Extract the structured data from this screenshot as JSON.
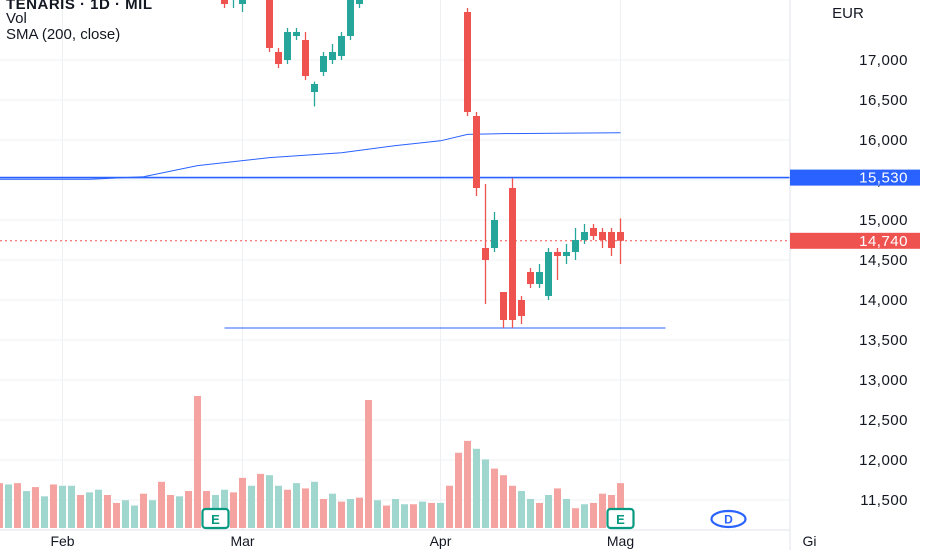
{
  "legend": {
    "symbol": "TENARIS · 1D · MIL",
    "vol_label": "Vol",
    "sma_label": "SMA (200, close)"
  },
  "currency": "EUR",
  "colors": {
    "up": "#26a69a",
    "down": "#ef5350",
    "vol_up": "#9fd6ce",
    "vol_down": "#f5a3a1",
    "line": "#2962ff",
    "sma": "#2962ff",
    "text": "#131722",
    "grid": "#eef0f4"
  },
  "chart_data": {
    "type": "candlestick",
    "y_axis": {
      "ticks": [
        11500,
        12000,
        12500,
        13000,
        13500,
        14000,
        14500,
        15000,
        15500,
        16000,
        16500,
        17000
      ],
      "tick_labels": [
        "11,500",
        "12,000",
        "12,500",
        "13,000",
        "13,500",
        "14,000",
        "14,500",
        "15,000",
        "15,500",
        "16,000",
        "16,500",
        "17,000"
      ],
      "range": [
        11150,
        17700
      ]
    },
    "x_axis": {
      "labels": [
        {
          "text": "Feb",
          "slot": 7
        },
        {
          "text": "Mar",
          "slot": 27
        },
        {
          "text": "Apr",
          "slot": 49
        },
        {
          "text": "Mag",
          "slot": 69
        },
        {
          "text": "Gi",
          "slot": 90
        }
      ],
      "slots_total": 91
    },
    "price_badges": [
      {
        "label": "15,530",
        "value": 15530,
        "color": "#2962ff"
      },
      {
        "label": "14,740",
        "value": 14740,
        "color": "#ef5350"
      }
    ],
    "horizontal_lines": [
      {
        "value": 15530,
        "color": "#2962ff",
        "extends": "full"
      },
      {
        "value": 13650,
        "from_slot": 25,
        "to_slot": 74,
        "color": "#2962ff"
      }
    ],
    "sma_200": [
      {
        "slot": 0,
        "value": 15510
      },
      {
        "slot": 10,
        "value": 15510
      },
      {
        "slot": 16,
        "value": 15540
      },
      {
        "slot": 22,
        "value": 15680
      },
      {
        "slot": 30,
        "value": 15780
      },
      {
        "slot": 38,
        "value": 15840
      },
      {
        "slot": 44,
        "value": 15930
      },
      {
        "slot": 49,
        "value": 15990
      },
      {
        "slot": 52,
        "value": 16070
      },
      {
        "slot": 56,
        "value": 16080
      },
      {
        "slot": 69,
        "value": 16090
      }
    ],
    "candles": [
      {
        "slot": 4,
        "o": 17800,
        "h": 17900,
        "l": 17700,
        "c": 17850
      },
      {
        "slot": 25,
        "o": 17800,
        "h": 17900,
        "l": 17650,
        "c": 17700
      },
      {
        "slot": 26,
        "o": 17750,
        "h": 17850,
        "l": 17650,
        "c": 17800
      },
      {
        "slot": 27,
        "o": 17700,
        "h": 17800,
        "l": 17600,
        "c": 17750
      },
      {
        "slot": 30,
        "o": 17800,
        "h": 17850,
        "l": 17100,
        "c": 17150
      },
      {
        "slot": 31,
        "o": 17100,
        "h": 17150,
        "l": 16900,
        "c": 16950
      },
      {
        "slot": 32,
        "o": 17000,
        "h": 17400,
        "l": 16950,
        "c": 17350
      },
      {
        "slot": 33,
        "o": 17300,
        "h": 17400,
        "l": 17250,
        "c": 17350
      },
      {
        "slot": 34,
        "o": 17250,
        "h": 17350,
        "l": 16750,
        "c": 16800
      },
      {
        "slot": 35,
        "o": 16600,
        "h": 16730,
        "l": 16420,
        "c": 16700
      },
      {
        "slot": 36,
        "o": 16850,
        "h": 17100,
        "l": 16800,
        "c": 17050
      },
      {
        "slot": 37,
        "o": 17000,
        "h": 17200,
        "l": 16950,
        "c": 17100
      },
      {
        "slot": 38,
        "o": 17050,
        "h": 17350,
        "l": 17000,
        "c": 17300
      },
      {
        "slot": 39,
        "o": 17300,
        "h": 17800,
        "l": 17250,
        "c": 17750
      },
      {
        "slot": 40,
        "o": 17700,
        "h": 17900,
        "l": 17650,
        "c": 17850
      },
      {
        "slot": 52,
        "o": 17600,
        "h": 17650,
        "l": 16300,
        "c": 16350
      },
      {
        "slot": 53,
        "o": 16300,
        "h": 16350,
        "l": 15300,
        "c": 15400
      },
      {
        "slot": 54,
        "o": 14650,
        "h": 15450,
        "l": 13950,
        "c": 14500
      },
      {
        "slot": 55,
        "o": 14650,
        "h": 15100,
        "l": 14600,
        "c": 15000
      },
      {
        "slot": 56,
        "o": 14100,
        "h": 14100,
        "l": 13650,
        "c": 13750
      },
      {
        "slot": 57,
        "o": 15400,
        "h": 15520,
        "l": 13650,
        "c": 13750
      },
      {
        "slot": 58,
        "o": 14000,
        "h": 14050,
        "l": 13700,
        "c": 13800
      },
      {
        "slot": 59,
        "o": 14350,
        "h": 14400,
        "l": 14150,
        "c": 14200
      },
      {
        "slot": 60,
        "o": 14200,
        "h": 14450,
        "l": 14150,
        "c": 14350
      },
      {
        "slot": 61,
        "o": 14050,
        "h": 14650,
        "l": 14000,
        "c": 14600
      },
      {
        "slot": 62,
        "o": 14600,
        "h": 14650,
        "l": 14250,
        "c": 14550
      },
      {
        "slot": 63,
        "o": 14550,
        "h": 14700,
        "l": 14450,
        "c": 14600
      },
      {
        "slot": 64,
        "o": 14600,
        "h": 14900,
        "l": 14500,
        "c": 14750
      },
      {
        "slot": 65,
        "o": 14750,
        "h": 14950,
        "l": 14700,
        "c": 14850
      },
      {
        "slot": 66,
        "o": 14900,
        "h": 14950,
        "l": 14750,
        "c": 14800
      },
      {
        "slot": 67,
        "o": 14850,
        "h": 14900,
        "l": 14650,
        "c": 14750
      },
      {
        "slot": 68,
        "o": 14850,
        "h": 14900,
        "l": 14550,
        "c": 14650
      },
      {
        "slot": 69,
        "o": 14850,
        "h": 15020,
        "l": 14450,
        "c": 14740
      }
    ],
    "volume": {
      "max_value": 100,
      "bars": [
        {
          "slot": 0,
          "v": 34,
          "up": false
        },
        {
          "slot": 1,
          "v": 33,
          "up": true
        },
        {
          "slot": 2,
          "v": 34,
          "up": false
        },
        {
          "slot": 3,
          "v": 28,
          "up": true
        },
        {
          "slot": 4,
          "v": 31,
          "up": false
        },
        {
          "slot": 5,
          "v": 24,
          "up": true
        },
        {
          "slot": 6,
          "v": 33,
          "up": false
        },
        {
          "slot": 7,
          "v": 32,
          "up": true
        },
        {
          "slot": 8,
          "v": 32,
          "up": true
        },
        {
          "slot": 9,
          "v": 25,
          "up": false
        },
        {
          "slot": 10,
          "v": 27,
          "up": true
        },
        {
          "slot": 11,
          "v": 29,
          "up": true
        },
        {
          "slot": 12,
          "v": 25,
          "up": false
        },
        {
          "slot": 13,
          "v": 19,
          "up": false
        },
        {
          "slot": 14,
          "v": 21,
          "up": true
        },
        {
          "slot": 15,
          "v": 17,
          "up": true
        },
        {
          "slot": 16,
          "v": 26,
          "up": false
        },
        {
          "slot": 17,
          "v": 21,
          "up": true
        },
        {
          "slot": 18,
          "v": 35,
          "up": false
        },
        {
          "slot": 19,
          "v": 25,
          "up": false
        },
        {
          "slot": 20,
          "v": 24,
          "up": true
        },
        {
          "slot": 21,
          "v": 28,
          "up": false
        },
        {
          "slot": 22,
          "v": 100,
          "up": false
        },
        {
          "slot": 23,
          "v": 28,
          "up": false
        },
        {
          "slot": 24,
          "v": 25,
          "up": true
        },
        {
          "slot": 25,
          "v": 29,
          "up": true
        },
        {
          "slot": 26,
          "v": 27,
          "up": false
        },
        {
          "slot": 27,
          "v": 38,
          "up": false
        },
        {
          "slot": 28,
          "v": 32,
          "up": true
        },
        {
          "slot": 29,
          "v": 41,
          "up": false
        },
        {
          "slot": 30,
          "v": 40,
          "up": true
        },
        {
          "slot": 31,
          "v": 32,
          "up": true
        },
        {
          "slot": 32,
          "v": 29,
          "up": false
        },
        {
          "slot": 33,
          "v": 34,
          "up": true
        },
        {
          "slot": 34,
          "v": 30,
          "up": false
        },
        {
          "slot": 35,
          "v": 35,
          "up": true
        },
        {
          "slot": 36,
          "v": 22,
          "up": false
        },
        {
          "slot": 37,
          "v": 26,
          "up": true
        },
        {
          "slot": 38,
          "v": 20,
          "up": false
        },
        {
          "slot": 39,
          "v": 22,
          "up": true
        },
        {
          "slot": 40,
          "v": 23,
          "up": false
        },
        {
          "slot": 41,
          "v": 97,
          "up": false
        },
        {
          "slot": 42,
          "v": 21,
          "up": true
        },
        {
          "slot": 43,
          "v": 17,
          "up": false
        },
        {
          "slot": 44,
          "v": 22,
          "up": true
        },
        {
          "slot": 45,
          "v": 18,
          "up": true
        },
        {
          "slot": 46,
          "v": 18,
          "up": false
        },
        {
          "slot": 47,
          "v": 20,
          "up": true
        },
        {
          "slot": 48,
          "v": 19,
          "up": false
        },
        {
          "slot": 49,
          "v": 19,
          "up": true
        },
        {
          "slot": 50,
          "v": 32,
          "up": false
        },
        {
          "slot": 51,
          "v": 57,
          "up": false
        },
        {
          "slot": 52,
          "v": 66,
          "up": false
        },
        {
          "slot": 53,
          "v": 60,
          "up": true
        },
        {
          "slot": 54,
          "v": 52,
          "up": true
        },
        {
          "slot": 55,
          "v": 45,
          "up": false
        },
        {
          "slot": 56,
          "v": 40,
          "up": false
        },
        {
          "slot": 57,
          "v": 32,
          "up": false
        },
        {
          "slot": 58,
          "v": 28,
          "up": true
        },
        {
          "slot": 59,
          "v": 22,
          "up": true
        },
        {
          "slot": 60,
          "v": 19,
          "up": false
        },
        {
          "slot": 61,
          "v": 25,
          "up": true
        },
        {
          "slot": 62,
          "v": 30,
          "up": false
        },
        {
          "slot": 63,
          "v": 22,
          "up": true
        },
        {
          "slot": 64,
          "v": 15,
          "up": false
        },
        {
          "slot": 65,
          "v": 18,
          "up": true
        },
        {
          "slot": 66,
          "v": 19,
          "up": false
        },
        {
          "slot": 67,
          "v": 26,
          "up": false
        },
        {
          "slot": 68,
          "v": 25,
          "up": false
        },
        {
          "slot": 69,
          "v": 34,
          "up": false
        }
      ]
    },
    "markers": [
      {
        "slot": 24,
        "label": "E",
        "kind": "earnings"
      },
      {
        "slot": 69,
        "label": "E",
        "kind": "earnings"
      },
      {
        "slot": 81,
        "label": "D",
        "kind": "dividend"
      }
    ]
  }
}
